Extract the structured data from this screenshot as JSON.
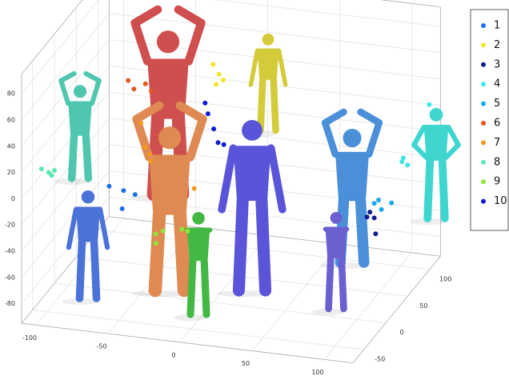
{
  "chart_data": {
    "type": "scatter3d",
    "xlim": [
      -110,
      120
    ],
    "ylim": [
      -75,
      125
    ],
    "zlim": [
      -95,
      95
    ],
    "xticks": [
      -100,
      -50,
      0,
      50,
      100
    ],
    "yticks": [
      -50,
      0,
      50,
      100
    ],
    "zticks": [
      -80,
      -60,
      -40,
      -20,
      0,
      20,
      40,
      60,
      80
    ],
    "grid": true,
    "legend": "right",
    "series": [
      {
        "name": "1",
        "color": "#1f6fe8",
        "x": [
          -72,
          -62,
          -54,
          -63
        ],
        "y": [
          0,
          0,
          0,
          0
        ],
        "z": [
          -16,
          -18,
          -20,
          -32
        ]
      },
      {
        "name": "2",
        "color": "#f2e52a",
        "x": [
          -15,
          -11,
          -8,
          -13
        ],
        "y": [
          50,
          50,
          50,
          50
        ],
        "z": [
          64,
          57,
          53,
          49
        ]
      },
      {
        "name": "3",
        "color": "#0d1d8a",
        "x": [
          109,
          112,
          113,
          107
        ],
        "y": [
          0,
          0,
          0,
          0
        ],
        "z": [
          -12,
          -16,
          -28,
          -16
        ]
      },
      {
        "name": "4",
        "color": "#3ee8e6",
        "x": [
          117,
          120,
          116,
          135
        ],
        "y": [
          50,
          50,
          50,
          50
        ],
        "z": [
          10,
          5,
          7,
          53
        ]
      },
      {
        "name": "5",
        "color": "#1aa8ef",
        "x": [
          112,
          117,
          124,
          115
        ],
        "y": [
          0,
          0,
          0,
          0
        ],
        "z": [
          -5,
          -9,
          -3,
          -2
        ]
      },
      {
        "name": "6",
        "color": "#e5561e",
        "x": [
          -74,
          -70,
          -62,
          -58
        ],
        "y": [
          50,
          50,
          50,
          50
        ],
        "z": [
          44,
          38,
          43,
          38
        ]
      },
      {
        "name": "7",
        "color": "#f39a1c",
        "x": [
          -50,
          -47,
          -44,
          -43,
          -13
        ],
        "y": [
          0,
          0,
          0,
          0,
          0
        ],
        "z": [
          35,
          17,
          12,
          7,
          -10
        ]
      },
      {
        "name": "8",
        "color": "#5ee5b0",
        "x": [
          -119,
          -114,
          -110,
          -112
        ],
        "y": [
          0,
          0,
          0,
          0
        ],
        "z": [
          -9,
          -11,
          -9,
          -13
        ]
      },
      {
        "name": "9",
        "color": "#8ee63a",
        "x": [
          -32,
          -27,
          -14,
          -10,
          -32
        ],
        "y": [
          -25,
          -25,
          -25,
          -25,
          -25
        ],
        "z": [
          -37,
          -34,
          -31,
          -32,
          -44
        ]
      },
      {
        "name": "10",
        "color": "#0b1bd0",
        "x": [
          -13,
          -7,
          -4,
          0,
          -11
        ],
        "y": [
          25,
          25,
          25,
          25,
          25
        ],
        "z": [
          45,
          26,
          16,
          15,
          37
        ]
      }
    ]
  }
}
